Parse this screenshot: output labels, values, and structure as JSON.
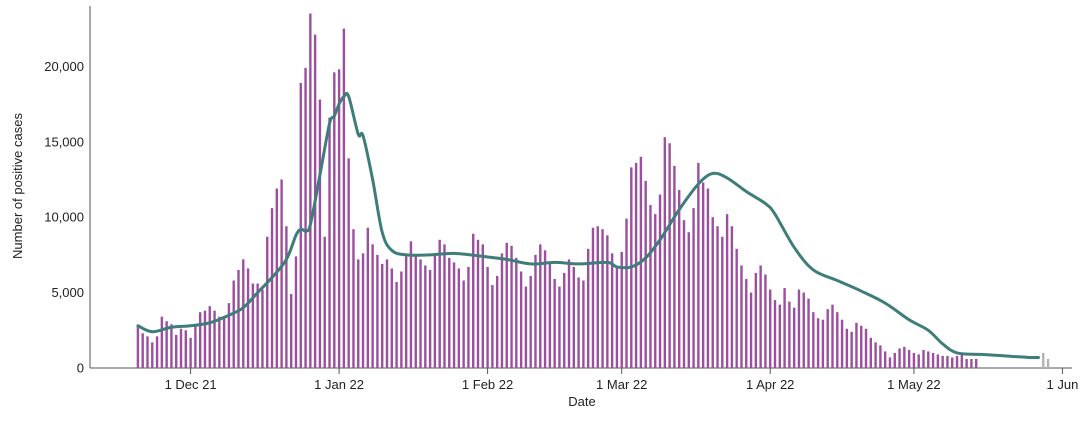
{
  "chart_data": {
    "type": "bar",
    "xlabel": "Date",
    "ylabel": "Number of positive cases",
    "ylim": [
      0,
      24000
    ],
    "xlim": [
      "2021-11-10",
      "2022-06-03"
    ],
    "y_ticks": [
      {
        "value": 0,
        "label": "0"
      },
      {
        "value": 5000,
        "label": "5,000"
      },
      {
        "value": 10000,
        "label": "10,000"
      },
      {
        "value": 15000,
        "label": "15,000"
      },
      {
        "value": 20000,
        "label": "20,000"
      }
    ],
    "x_ticks": [
      {
        "date": "2021-12-01",
        "label": "1 Dec 21"
      },
      {
        "date": "2022-01-01",
        "label": "1 Jan 22"
      },
      {
        "date": "2022-02-01",
        "label": "1 Feb 22"
      },
      {
        "date": "2022-03-01",
        "label": "1 Mar 22"
      },
      {
        "date": "2022-04-01",
        "label": "1 Apr 22"
      },
      {
        "date": "2022-05-01",
        "label": "1 May 22"
      },
      {
        "date": "2022-06-01",
        "label": "1 Jun"
      }
    ],
    "colors": {
      "bars": "#9b4f9e",
      "bars_incomplete": "#b3b3b3",
      "line": "#3f7d7a",
      "axis": "#555555"
    },
    "series": [
      {
        "kind": "bars",
        "start": "2021-11-20",
        "values": [
          2800,
          2300,
          2100,
          1700,
          2100,
          3400,
          3100,
          2900,
          2200,
          2600,
          2500,
          2000,
          2800,
          3700,
          3800,
          4100,
          3800,
          3400,
          3400,
          4300,
          5800,
          6500,
          7200,
          6600,
          5600,
          5600,
          5200,
          8700,
          10600,
          11900,
          12500,
          9400,
          4900,
          7400,
          18900,
          19900,
          23500,
          22100,
          17800,
          8700,
          16600,
          19600,
          19800,
          22500,
          13900,
          9200,
          7200,
          7600,
          9300,
          8200,
          7500,
          6900,
          7200,
          6600,
          5700,
          6400,
          7400,
          8400,
          7400,
          7200,
          6800,
          6500,
          7500,
          8500,
          8200,
          7300,
          7000,
          6600,
          5800,
          6700,
          8900,
          8500,
          8200,
          6700,
          5500,
          6100,
          7600,
          8300,
          8100,
          7300,
          6400,
          5400,
          6100,
          7500,
          8200,
          7800,
          7000,
          5900,
          5400,
          6300,
          7200,
          6700,
          6000,
          5800,
          7900,
          9300,
          9400,
          9200,
          8800,
          7600,
          6700,
          7700,
          9900,
          13300,
          13600,
          14000,
          12400,
          10800,
          10200,
          11500,
          15300,
          14900,
          13400,
          11800,
          9800,
          9000,
          10600,
          13600,
          12300,
          11900,
          10000,
          9400,
          8700,
          10200,
          9400,
          7900,
          6800,
          5900,
          5000,
          6300,
          6800,
          6200,
          5200,
          4500,
          4200,
          5300,
          4400,
          4000,
          5200,
          5000,
          4600,
          3700,
          3300,
          3200,
          3900,
          4200,
          3700,
          3200,
          2600,
          2400,
          3000,
          2800,
          2600,
          2000,
          1700,
          1500,
          1100,
          700,
          1000,
          1300,
          1400,
          1200,
          1000,
          900,
          1200,
          1100,
          1000,
          900,
          800,
          800,
          700,
          800,
          900,
          600,
          600,
          600
        ]
      },
      {
        "kind": "bars_incomplete",
        "start": "2022-05-28",
        "values": [
          1000,
          600
        ]
      },
      {
        "kind": "line",
        "description_source": "7-day average",
        "points": [
          [
            "2021-11-20",
            2800
          ],
          [
            "2021-11-23",
            2400
          ],
          [
            "2021-11-27",
            2700
          ],
          [
            "2021-12-01",
            2800
          ],
          [
            "2021-12-05",
            3000
          ],
          [
            "2021-12-09",
            3500
          ],
          [
            "2021-12-12",
            4000
          ],
          [
            "2021-12-15",
            5000
          ],
          [
            "2021-12-18",
            6000
          ],
          [
            "2021-12-21",
            7200
          ],
          [
            "2021-12-23",
            8800
          ],
          [
            "2021-12-24",
            9200
          ],
          [
            "2021-12-25",
            9100
          ],
          [
            "2021-12-26",
            9500
          ],
          [
            "2021-12-28",
            12800
          ],
          [
            "2021-12-30",
            16200
          ],
          [
            "2021-12-31",
            16700
          ],
          [
            "2022-01-01",
            17500
          ],
          [
            "2022-01-02",
            18000
          ],
          [
            "2022-01-03",
            18000
          ],
          [
            "2022-01-05",
            15500
          ],
          [
            "2022-01-06",
            15400
          ],
          [
            "2022-01-08",
            12500
          ],
          [
            "2022-01-10",
            9000
          ],
          [
            "2022-01-12",
            7800
          ],
          [
            "2022-01-15",
            7500
          ],
          [
            "2022-01-20",
            7500
          ],
          [
            "2022-01-25",
            7600
          ],
          [
            "2022-01-31",
            7400
          ],
          [
            "2022-02-05",
            7200
          ],
          [
            "2022-02-10",
            6900
          ],
          [
            "2022-02-15",
            7000
          ],
          [
            "2022-02-20",
            6900
          ],
          [
            "2022-02-26",
            7000
          ],
          [
            "2022-02-28",
            6700
          ],
          [
            "2022-03-03",
            6700
          ],
          [
            "2022-03-06",
            7300
          ],
          [
            "2022-03-09",
            8500
          ],
          [
            "2022-03-13",
            10500
          ],
          [
            "2022-03-17",
            12200
          ],
          [
            "2022-03-20",
            12900
          ],
          [
            "2022-03-23",
            12600
          ],
          [
            "2022-03-27",
            11700
          ],
          [
            "2022-03-31",
            10900
          ],
          [
            "2022-04-02",
            10200
          ],
          [
            "2022-04-06",
            8000
          ],
          [
            "2022-04-10",
            6500
          ],
          [
            "2022-04-15",
            5800
          ],
          [
            "2022-04-20",
            5100
          ],
          [
            "2022-04-25",
            4300
          ],
          [
            "2022-04-30",
            3200
          ],
          [
            "2022-05-04",
            2500
          ],
          [
            "2022-05-07",
            1600
          ],
          [
            "2022-05-10",
            1000
          ],
          [
            "2022-05-15",
            900
          ],
          [
            "2022-05-20",
            800
          ],
          [
            "2022-05-25",
            700
          ],
          [
            "2022-05-27",
            700
          ]
        ]
      }
    ],
    "grid": false,
    "legend": "none"
  }
}
